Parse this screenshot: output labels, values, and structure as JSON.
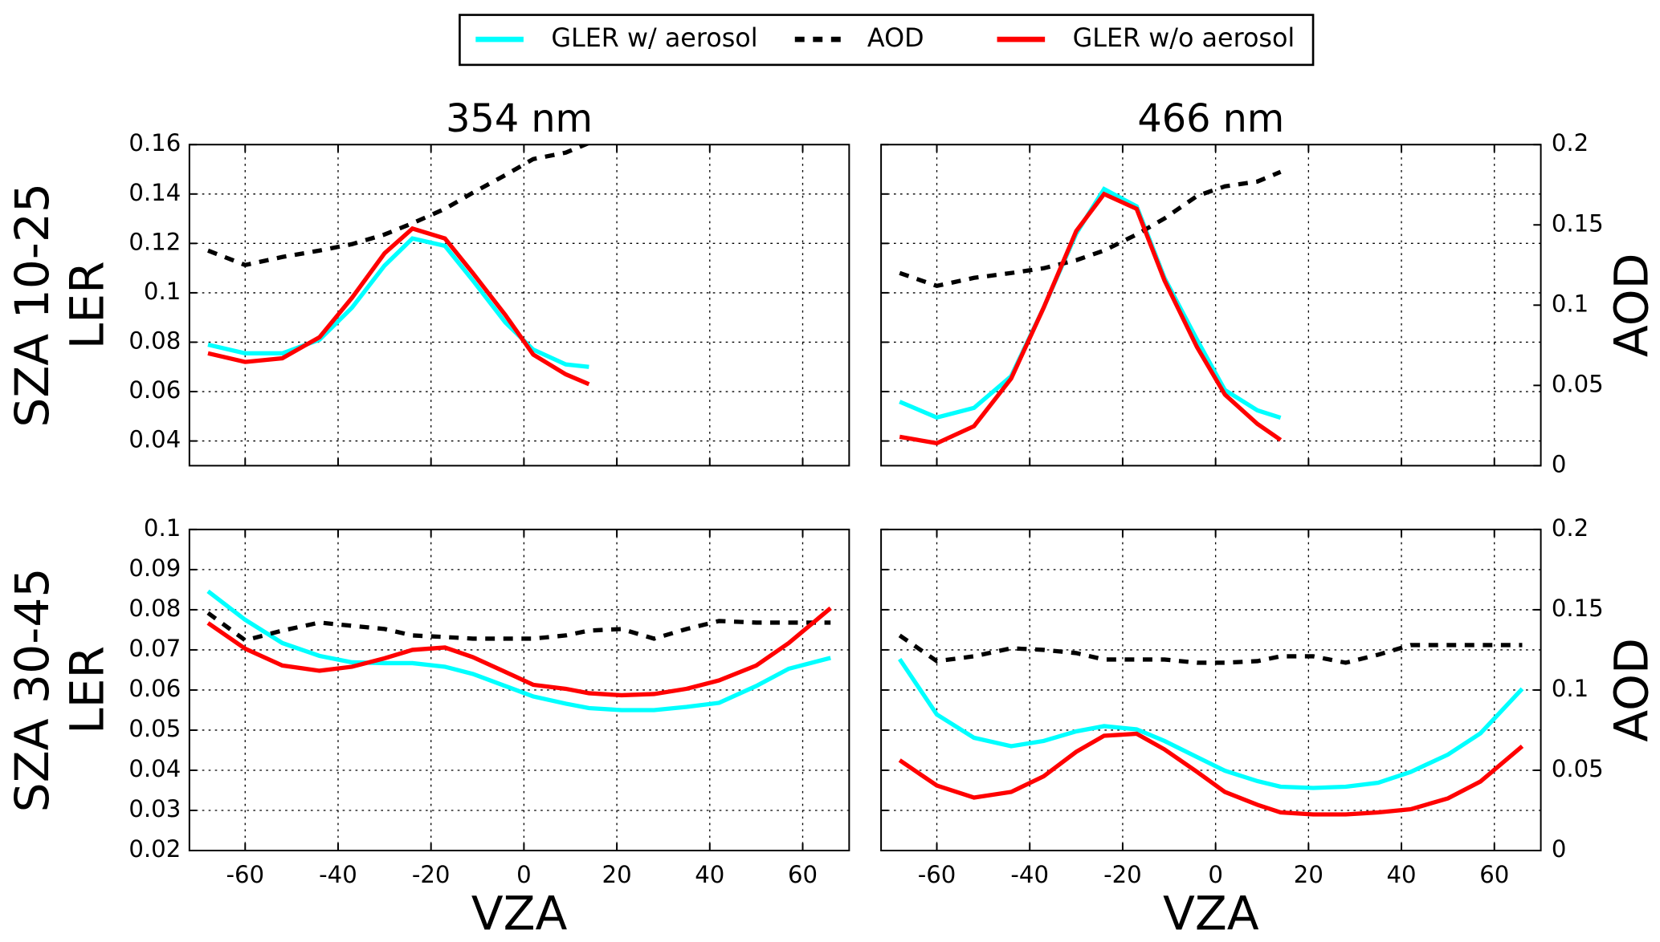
{
  "chart_data": [
    {
      "type": "line",
      "title": "354 nm",
      "ylabel": [
        "SZA 10-25",
        "LER"
      ],
      "grid": true,
      "x": [
        -68,
        -60,
        -52,
        -44,
        -37,
        -30,
        -24,
        -17,
        -11,
        -4,
        2,
        9,
        14
      ],
      "xlim": [
        -72,
        70
      ],
      "xticks": [
        -60,
        -40,
        -20,
        0,
        20,
        40,
        60
      ],
      "xticklabels": false,
      "ylim": [
        0.03,
        0.16
      ],
      "yticks": [
        0.04,
        0.06,
        0.08,
        0.1,
        0.12,
        0.14,
        0.16
      ],
      "y2lim": [
        0,
        0.2
      ],
      "series": [
        {
          "name": "GLER w/ aerosol",
          "color": "#00ffff",
          "linestyle": "solid",
          "values": [
            0.079,
            0.0755,
            0.0755,
            0.081,
            0.094,
            0.111,
            0.122,
            0.119,
            0.105,
            0.088,
            0.077,
            0.071,
            0.07
          ]
        },
        {
          "name": "AOD",
          "color": "#000000",
          "linestyle": "dashed",
          "axis": "y2",
          "values": [
            0.134,
            0.125,
            0.13,
            0.134,
            0.138,
            0.144,
            0.151,
            0.16,
            0.17,
            0.181,
            0.191,
            0.195,
            0.201
          ]
        },
        {
          "name": "GLER w/o aerosol",
          "color": "#ff0000",
          "linestyle": "solid",
          "values": [
            0.0755,
            0.072,
            0.0735,
            0.082,
            0.098,
            0.116,
            0.126,
            0.122,
            0.108,
            0.091,
            0.075,
            0.067,
            0.063
          ]
        }
      ]
    },
    {
      "type": "line",
      "title": "466 nm",
      "y2label": "AOD",
      "grid": true,
      "x": [
        -68,
        -60,
        -52,
        -44,
        -37,
        -30,
        -24,
        -17,
        -11,
        -4,
        2,
        9,
        14
      ],
      "xlim": [
        -72,
        70
      ],
      "xticks": [
        -60,
        -40,
        -20,
        0,
        20,
        40,
        60
      ],
      "xticklabels": false,
      "ylim": [
        0.03,
        0.16
      ],
      "yticks": [
        0.04,
        0.06,
        0.08,
        0.1,
        0.12,
        0.14,
        0.16
      ],
      "yticklabels": false,
      "y2lim": [
        0,
        0.2
      ],
      "y2ticks": [
        0.0,
        0.05,
        0.1,
        0.15,
        0.2
      ],
      "series": [
        {
          "name": "GLER w/ aerosol",
          "color": "#00ffff",
          "linestyle": "solid",
          "values": [
            0.0559,
            0.0495,
            0.0534,
            0.0662,
            0.094,
            0.124,
            0.142,
            0.135,
            0.106,
            0.081,
            0.0606,
            0.0524,
            0.0494
          ]
        },
        {
          "name": "AOD",
          "color": "#000000",
          "linestyle": "dashed",
          "axis": "y2",
          "values": [
            0.12,
            0.112,
            0.117,
            0.12,
            0.123,
            0.128,
            0.134,
            0.144,
            0.154,
            0.168,
            0.174,
            0.177,
            0.183
          ]
        },
        {
          "name": "GLER w/o aerosol",
          "color": "#ff0000",
          "linestyle": "solid",
          "values": [
            0.0417,
            0.0391,
            0.046,
            0.0653,
            0.094,
            0.125,
            0.14,
            0.134,
            0.105,
            0.078,
            0.0588,
            0.0469,
            0.0404
          ]
        }
      ]
    },
    {
      "type": "line",
      "ylabel": [
        "SZA 30-45",
        "LER"
      ],
      "xlabel": "VZA",
      "grid": true,
      "x": [
        -68,
        -60,
        -52,
        -44,
        -37,
        -30,
        -24,
        -17,
        -11,
        -4,
        2,
        9,
        14,
        21,
        28,
        35,
        42,
        50,
        57,
        66
      ],
      "xlim": [
        -72,
        70
      ],
      "xticks": [
        -60,
        -40,
        -20,
        0,
        20,
        40,
        60
      ],
      "ylim": [
        0.02,
        0.1
      ],
      "yticks": [
        0.02,
        0.03,
        0.04,
        0.05,
        0.06,
        0.07,
        0.08,
        0.09,
        0.1
      ],
      "y2lim": [
        0,
        0.2
      ],
      "series": [
        {
          "name": "GLER w/ aerosol",
          "color": "#00ffff",
          "linestyle": "solid",
          "values": [
            0.0846,
            0.0775,
            0.0717,
            0.0685,
            0.0669,
            0.0667,
            0.0667,
            0.0658,
            0.064,
            0.061,
            0.0584,
            0.0566,
            0.0555,
            0.055,
            0.055,
            0.0558,
            0.0568,
            0.061,
            0.0653,
            0.068
          ]
        },
        {
          "name": "AOD",
          "color": "#000000",
          "linestyle": "dashed",
          "axis": "y2",
          "values": [
            0.148,
            0.131,
            0.137,
            0.142,
            0.14,
            0.138,
            0.134,
            0.133,
            0.132,
            0.132,
            0.132,
            0.134,
            0.137,
            0.138,
            0.132,
            0.138,
            0.143,
            0.142,
            0.142,
            0.142
          ]
        },
        {
          "name": "GLER w/o aerosol",
          "color": "#ff0000",
          "linestyle": "solid",
          "values": [
            0.0767,
            0.0703,
            0.0661,
            0.0648,
            0.0658,
            0.0679,
            0.07,
            0.0706,
            0.0682,
            0.0645,
            0.0613,
            0.0603,
            0.0592,
            0.0587,
            0.059,
            0.0603,
            0.0624,
            0.0661,
            0.0717,
            0.0804
          ]
        }
      ]
    },
    {
      "type": "line",
      "y2label": "AOD",
      "xlabel": "VZA",
      "grid": true,
      "x": [
        -68,
        -60,
        -52,
        -44,
        -37,
        -30,
        -24,
        -17,
        -11,
        -4,
        2,
        9,
        14,
        21,
        28,
        35,
        42,
        50,
        57,
        66
      ],
      "xlim": [
        -72,
        70
      ],
      "xticks": [
        -60,
        -40,
        -20,
        0,
        20,
        40,
        60
      ],
      "ylim": [
        0.02,
        0.1
      ],
      "yticks": [
        0.02,
        0.03,
        0.04,
        0.05,
        0.06,
        0.07,
        0.08,
        0.09,
        0.1
      ],
      "yticklabels": false,
      "y2lim": [
        0,
        0.2
      ],
      "y2ticks": [
        0.0,
        0.05,
        0.1,
        0.15,
        0.2
      ],
      "series": [
        {
          "name": "GLER w/ aerosol",
          "color": "#00ffff",
          "linestyle": "solid",
          "values": [
            0.0677,
            0.0539,
            0.0481,
            0.046,
            0.0473,
            0.0497,
            0.051,
            0.0502,
            0.0473,
            0.0433,
            0.0399,
            0.0373,
            0.0359,
            0.0356,
            0.0359,
            0.0369,
            0.0396,
            0.0439,
            0.0492,
            0.0603
          ]
        },
        {
          "name": "AOD",
          "color": "#000000",
          "linestyle": "dashed",
          "axis": "y2",
          "values": [
            0.134,
            0.118,
            0.121,
            0.126,
            0.125,
            0.123,
            0.119,
            0.119,
            0.119,
            0.117,
            0.117,
            0.118,
            0.121,
            0.121,
            0.117,
            0.122,
            0.128,
            0.128,
            0.128,
            0.128
          ]
        },
        {
          "name": "GLER w/o aerosol",
          "color": "#ff0000",
          "linestyle": "solid",
          "values": [
            0.0425,
            0.0362,
            0.0332,
            0.0346,
            0.0385,
            0.0446,
            0.0486,
            0.0491,
            0.0452,
            0.0396,
            0.0346,
            0.0314,
            0.0295,
            0.029,
            0.029,
            0.0295,
            0.0303,
            0.033,
            0.0372,
            0.046
          ]
        }
      ]
    }
  ]
}
